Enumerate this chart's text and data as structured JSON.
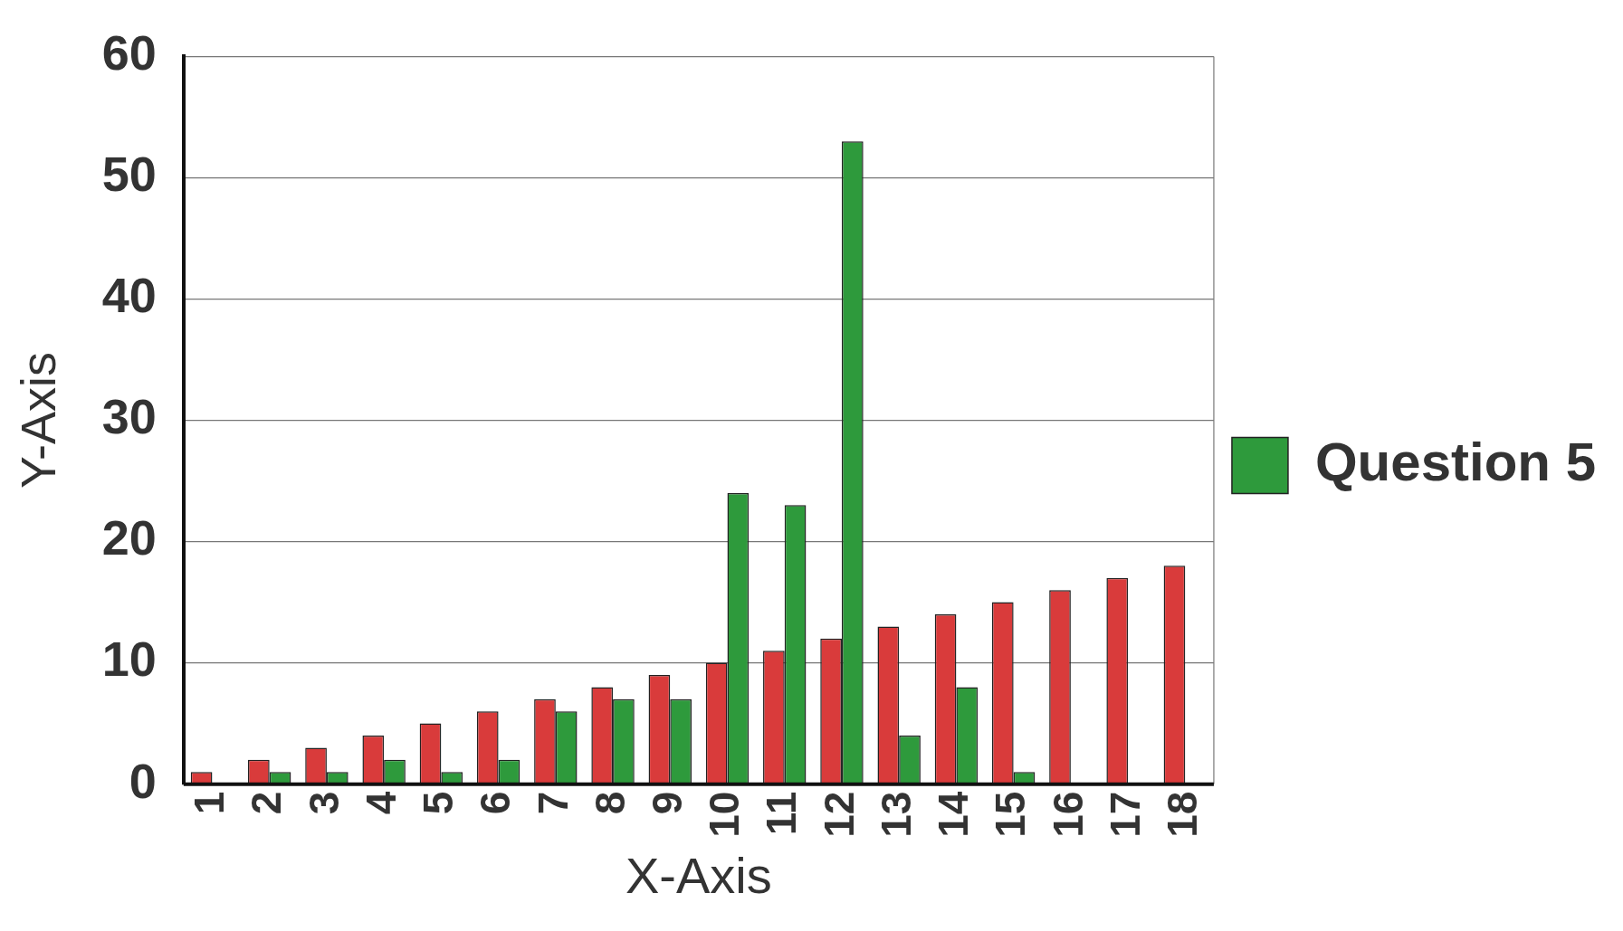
{
  "chart_data": {
    "type": "bar",
    "xlabel": "X-Axis",
    "ylabel": "Y-Axis",
    "categories": [
      "1",
      "2",
      "3",
      "4",
      "5",
      "6",
      "7",
      "8",
      "9",
      "10",
      "11",
      "12",
      "13",
      "14",
      "15",
      "16",
      "17",
      "18"
    ],
    "series": [
      {
        "color": "#d93b3b",
        "values": [
          1,
          2,
          3,
          4,
          5,
          6,
          7,
          8,
          9,
          10,
          11,
          12,
          13,
          14,
          15,
          16,
          17,
          18
        ]
      },
      {
        "name": "Question 5",
        "color": "#2e9a3c",
        "values": [
          0,
          1,
          1,
          2,
          1,
          2,
          6,
          7,
          7,
          24,
          23,
          53,
          4,
          8,
          1,
          0,
          0,
          0
        ]
      }
    ],
    "ylim": [
      0,
      60
    ],
    "yticks": [
      0,
      10,
      20,
      30,
      40,
      50,
      60
    ],
    "grid": "y",
    "legend": "right"
  }
}
